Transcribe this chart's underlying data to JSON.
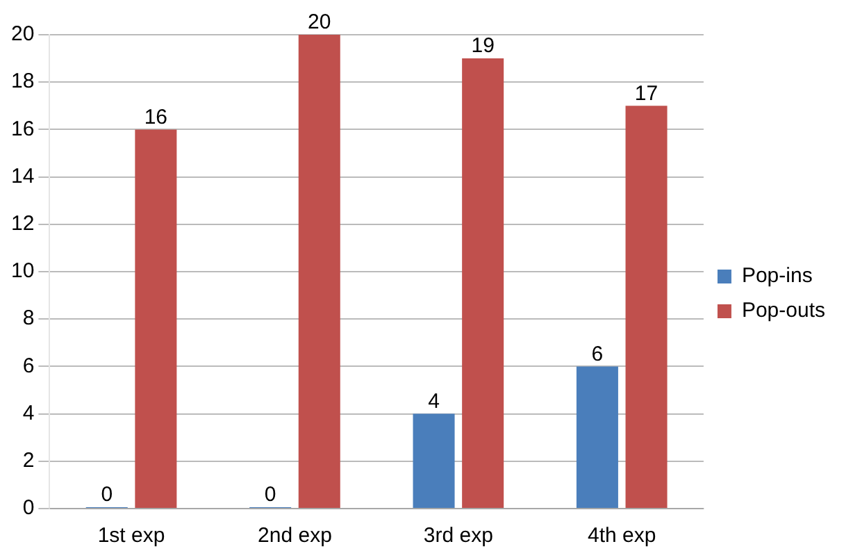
{
  "chart_data": {
    "type": "bar",
    "categories": [
      "1st exp",
      "2nd exp",
      "3rd exp",
      "4th exp"
    ],
    "series": [
      {
        "name": "Pop-ins",
        "color": "#4a7ebb",
        "values": [
          0,
          0,
          4,
          6
        ]
      },
      {
        "name": "Pop-outs",
        "color": "#c0504d",
        "values": [
          16,
          20,
          19,
          17
        ]
      }
    ],
    "ylim": [
      0,
      20
    ],
    "yticks": [
      0,
      2,
      4,
      6,
      8,
      10,
      12,
      14,
      16,
      18,
      20
    ],
    "grid": "y",
    "legend": "right",
    "data_labels": true
  }
}
